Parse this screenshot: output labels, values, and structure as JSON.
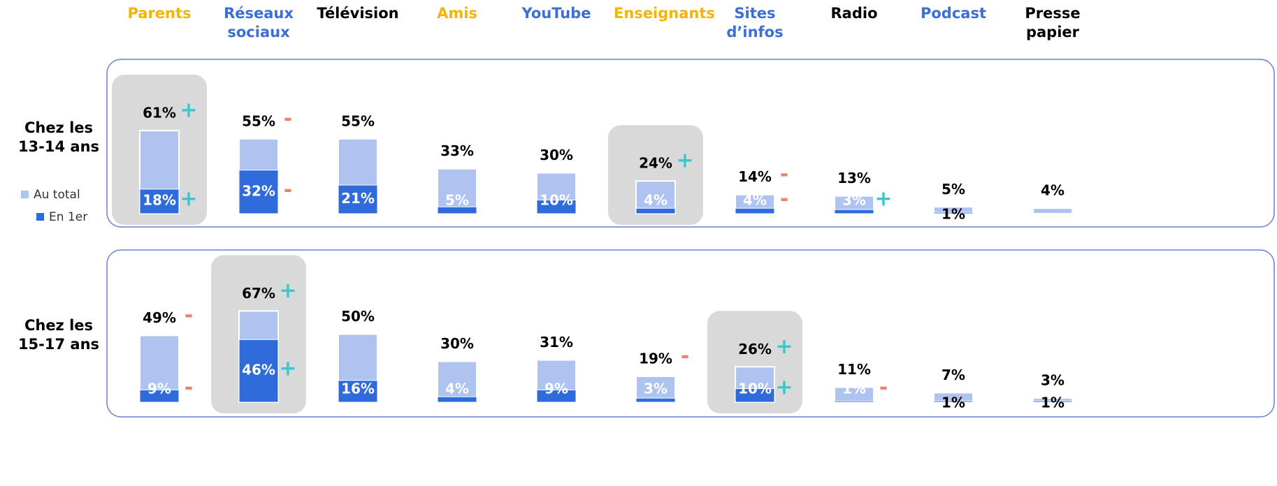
{
  "chart_data": {
    "type": "bar",
    "categories": [
      "Parents",
      "Réseaux sociaux",
      "Télévision",
      "Amis",
      "YouTube",
      "Enseignants",
      "Sites d’infos",
      "Radio",
      "Podcast",
      "Presse papier"
    ],
    "category_colors": [
      "#f5b400",
      "#3a6fd8",
      "#000000",
      "#f5b400",
      "#3a6fd8",
      "#f5b400",
      "#3a6fd8",
      "#000000",
      "#3a6fd8",
      "#000000"
    ],
    "legend": [
      {
        "name": "Au total",
        "color": "#aec3f0"
      },
      {
        "name": "En 1er",
        "color": "#2f6bdb"
      }
    ],
    "marker_colors": {
      "+": "#3cc8c8",
      "-": "#f08070"
    },
    "groups": [
      {
        "name": "Chez les 13-14 ans",
        "highlight": [
          true,
          false,
          false,
          false,
          false,
          true,
          false,
          false,
          false,
          false
        ],
        "series": [
          {
            "values": [
              61,
              55,
              55,
              33,
              30,
              24,
              14,
              13,
              5,
              4
            ],
            "value_labels": [
              "61%",
              "55%",
              "55%",
              "33%",
              "30%",
              "24%",
              "14%",
              "13%",
              "5%",
              "4%"
            ],
            "markers": [
              "+",
              "-",
              null,
              null,
              null,
              "+",
              "-",
              null,
              null,
              null
            ]
          },
          {
            "values": [
              18,
              32,
              21,
              5,
              10,
              4,
              4,
              3,
              1,
              null
            ],
            "value_labels": [
              "18%",
              "32%",
              "21%",
              "5%",
              "10%",
              "4%",
              "4%",
              "3%",
              "1%",
              null
            ],
            "markers": [
              "+",
              "-",
              null,
              null,
              null,
              null,
              "-",
              "+",
              null,
              null
            ]
          }
        ]
      },
      {
        "name": "Chez les 15-17 ans",
        "highlight": [
          false,
          true,
          false,
          false,
          false,
          false,
          true,
          false,
          false,
          false
        ],
        "series": [
          {
            "values": [
              49,
              67,
              50,
              30,
              31,
              19,
              26,
              11,
              7,
              3
            ],
            "value_labels": [
              "49%",
              "67%",
              "50%",
              "30%",
              "31%",
              "19%",
              "26%",
              "11%",
              "7%",
              "3%"
            ],
            "markers": [
              "-",
              "+",
              null,
              null,
              null,
              "-",
              "+",
              null,
              null,
              null
            ]
          },
          {
            "values": [
              9,
              46,
              16,
              4,
              9,
              3,
              10,
              1,
              1,
              1
            ],
            "value_labels": [
              "9%",
              "46%",
              "16%",
              "4%",
              "9%",
              "3%",
              "10%",
              "1%",
              "1%",
              "1%"
            ],
            "markers": [
              "-",
              "+",
              null,
              null,
              null,
              null,
              "+",
              "-",
              null,
              null
            ]
          }
        ]
      }
    ]
  }
}
